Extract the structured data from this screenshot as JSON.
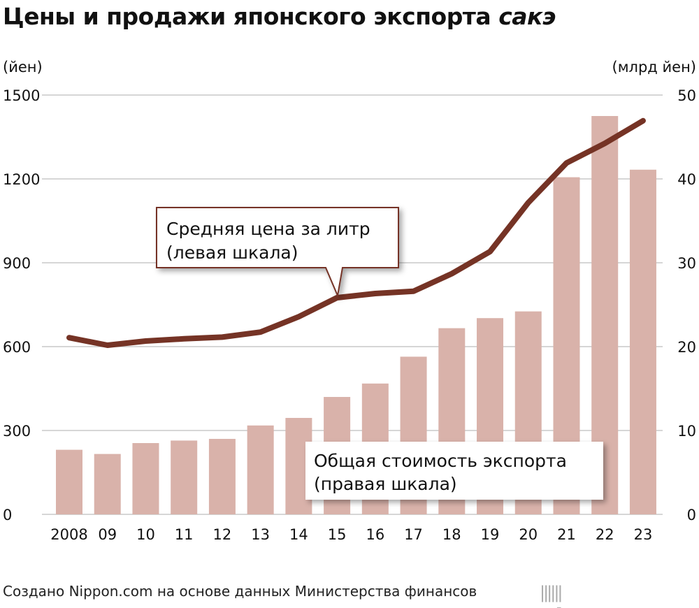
{
  "title_main": "Цены и продажи японского экспорта ",
  "title_italic": "сакэ",
  "source": "Создано Nippon.com на основе данных Министерства финансов",
  "logo": {
    "name": "nippon",
    "dot": ".",
    "tld": "com"
  },
  "chart_data": {
    "type": "bar+line",
    "categories": [
      "2008",
      "09",
      "10",
      "11",
      "12",
      "13",
      "14",
      "15",
      "16",
      "17",
      "18",
      "19",
      "20",
      "21",
      "22",
      "23"
    ],
    "left_axis": {
      "label": "(йен)",
      "ylim": [
        0,
        1500
      ],
      "ticks": [
        "0",
        "300",
        "600",
        "900",
        "1200",
        "1500"
      ]
    },
    "right_axis": {
      "label": "(млрд йен)",
      "ylim": [
        0,
        50
      ],
      "ticks": [
        "0",
        "10",
        "20",
        "30",
        "40",
        "50"
      ]
    },
    "grid": true,
    "series": [
      {
        "name": "Общая стоимость экспорта (правая шкала)",
        "name_line1": "Общая стоимость экспорта",
        "name_line2": " (правая шкала)",
        "type": "bar",
        "axis": "right",
        "color": "#d9b2aa",
        "values": [
          7.7,
          7.2,
          8.5,
          8.8,
          9.0,
          10.6,
          11.5,
          14.0,
          15.6,
          18.8,
          22.2,
          23.4,
          24.2,
          40.2,
          47.5,
          41.1
        ]
      },
      {
        "name": "Средняя цена за литр (левая шкала)",
        "name_line1": "Средняя цена за литр",
        "name_line2": "(левая шкала)",
        "type": "line",
        "axis": "left",
        "color": "#753325",
        "values": [
          632,
          605,
          620,
          628,
          634,
          652,
          707,
          775,
          790,
          798,
          861,
          940,
          1115,
          1257,
          1327,
          1408
        ]
      }
    ]
  }
}
